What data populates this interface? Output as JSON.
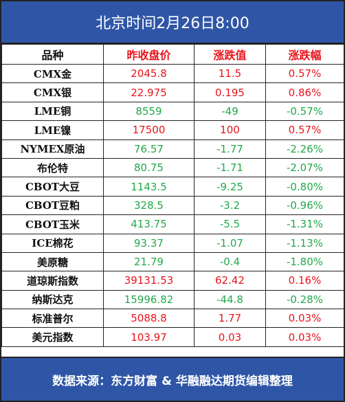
{
  "header": {
    "title": "北京时间2月26日8:00"
  },
  "table": {
    "columns": [
      "品种",
      "昨收盘价",
      "涨跌值",
      "涨跌幅"
    ],
    "rows": [
      [
        "CMX金",
        "2045.8",
        "11.5",
        "0.57%"
      ],
      [
        "CMX银",
        "22.975",
        "0.195",
        "0.86%"
      ],
      [
        "LME铜",
        "8559",
        "-49",
        "-0.57%"
      ],
      [
        "LME镍",
        "17500",
        "100",
        "0.57%"
      ],
      [
        "NYMEX原油",
        "76.57",
        "-1.77",
        "-2.26%"
      ],
      [
        "布伦特",
        "80.75",
        "-1.71",
        "-2.07%"
      ],
      [
        "CBOT大豆",
        "1143.5",
        "-9.25",
        "-0.80%"
      ],
      [
        "CBOT豆粕",
        "328.5",
        "-3.2",
        "-0.96%"
      ],
      [
        "CBOT玉米",
        "413.75",
        "-5.5",
        "-1.31%"
      ],
      [
        "ICE棉花",
        "93.37",
        "-1.07",
        "-1.13%"
      ],
      [
        "美原糖",
        "21.79",
        "-0.4",
        "-1.80%"
      ],
      [
        "道琼斯指数",
        "39131.53",
        "62.42",
        "0.16%"
      ],
      [
        "纳斯达克",
        "15996.82",
        "-44.8",
        "-0.28%"
      ],
      [
        "标准普尔",
        "5088.8",
        "1.77",
        "0.03%"
      ],
      [
        "美元指数",
        "103.97",
        "0.03",
        "0.03%"
      ]
    ]
  },
  "footer": {
    "source": "数据来源：东方财富 & 华融融达期货编辑整理"
  }
}
